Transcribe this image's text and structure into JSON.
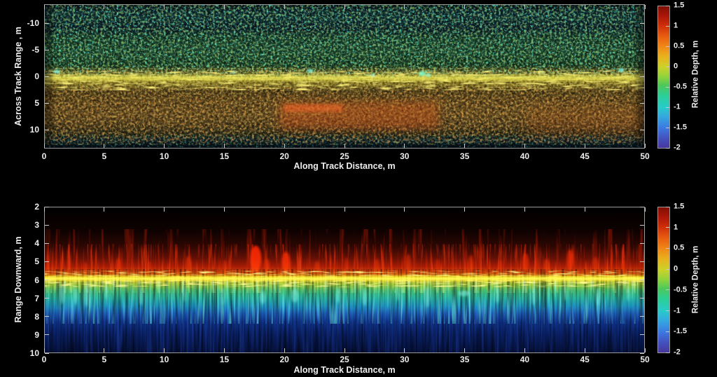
{
  "panels": [
    {
      "name": "plan-view",
      "xlabel": "Along Track Distance, m",
      "ylabel": "Across Track Range , m",
      "xticks": [
        "0",
        "5",
        "10",
        "15",
        "20",
        "25",
        "30",
        "35",
        "40",
        "45",
        "50"
      ],
      "yticks": [
        "-10",
        "-5",
        "0",
        "5",
        "10"
      ],
      "colorbar": {
        "label": "Relative Depth, m",
        "ticks": [
          "1.5",
          "1",
          "0.5",
          "0",
          "-0.5",
          "-1",
          "-1.5",
          "-2"
        ]
      }
    },
    {
      "name": "profile-view",
      "xlabel": "Along Track Distance, m",
      "ylabel": "Range Downward, m",
      "xticks": [
        "0",
        "5",
        "10",
        "15",
        "20",
        "25",
        "30",
        "35",
        "40",
        "45",
        "50"
      ],
      "yticks": [
        "2",
        "3",
        "4",
        "5",
        "6",
        "7",
        "8",
        "9",
        "10"
      ],
      "colorbar": {
        "label": "Relative Depth, m",
        "ticks": [
          "1.5",
          "1",
          "0.5",
          "0",
          "-0.5",
          "-1",
          "-1.5",
          "-2"
        ]
      }
    }
  ],
  "colors": {
    "background": "#000000",
    "text": "#ededed",
    "axis_border": "#9a9a9a",
    "tick_mark": "#c9c9c9",
    "colormap_top_to_bottom": [
      "#801004",
      "#cc2c08",
      "#e85c10",
      "#f08c18",
      "#e8b41e",
      "#ccd22a",
      "#8ed23c",
      "#4cc85a",
      "#2cce96",
      "#28ccc8",
      "#34a8e0",
      "#3c78e0",
      "#4452c0",
      "#46379b"
    ]
  },
  "chart_data": [
    {
      "type": "heatmap",
      "title": "",
      "view": "plan-view sonar relative-depth mosaic (speckled texture)",
      "xlabel": "Along Track Distance, m",
      "ylabel": "Across Track Range , m",
      "xlim": [
        0,
        50
      ],
      "ylim": [
        -13.5,
        13.5
      ],
      "xticks": [
        0,
        5,
        10,
        15,
        20,
        25,
        30,
        35,
        40,
        45,
        50
      ],
      "yticks": [
        -10,
        -5,
        0,
        5,
        10
      ],
      "grid": false,
      "legend_position": "colorbar-right",
      "colorbar": {
        "label": "Relative Depth, m",
        "min": -2,
        "max": 1.5,
        "ticks": [
          1.5,
          1,
          0.5,
          0,
          -0.5,
          -1,
          -1.5,
          -2
        ],
        "colormap": "jet-like rainbow, dark red (high) to indigo (low)"
      },
      "bands_across_track": [
        {
          "across_track_m": [
            -13.5,
            -11.5
          ],
          "relative_depth_m": -1.8,
          "appearance": "dark navy/teal edge"
        },
        {
          "across_track_m": [
            -11.5,
            -10
          ],
          "relative_depth_m": -1.9,
          "appearance": "darker navy stripe"
        },
        {
          "across_track_m": [
            -10,
            -1.5
          ],
          "relative_depth_m": -0.9,
          "appearance": "green/teal speckle with bright cyan dots"
        },
        {
          "across_track_m": [
            -1,
            1.5
          ],
          "relative_depth_m": 0.1,
          "appearance": "bright yellow band along track"
        },
        {
          "across_track_m": [
            2,
            10.5
          ],
          "relative_depth_m": 0.4,
          "appearance": "olive/orange/amber speckle"
        },
        {
          "across_track_m": [
            10.5,
            13.5
          ],
          "relative_depth_m": -1.8,
          "appearance": "dark navy edge with faint cyan speckle"
        }
      ],
      "features": [
        {
          "desc": "red high patch, relative depth ~ +1 to +1.5",
          "along_track_m": [
            16,
            29
          ],
          "across_track_m": [
            4,
            8
          ]
        },
        {
          "desc": "fainter red tint region",
          "along_track_m": [
            39,
            49
          ],
          "across_track_m": [
            5,
            9
          ]
        },
        {
          "desc": "bright cyan low spots near track center",
          "along_track_points_m": [
            1,
            18.5,
            22,
            27.5,
            31.5,
            48
          ],
          "across_track_m": 0
        }
      ]
    },
    {
      "type": "heatmap",
      "title": "",
      "view": "vertical-profile sonar echogram (vertical streak texture)",
      "xlabel": "Along Track Distance, m",
      "ylabel": "Range Downward, m",
      "xlim": [
        0,
        50
      ],
      "ylim": [
        2,
        10
      ],
      "y_direction": "downward",
      "xticks": [
        0,
        5,
        10,
        15,
        20,
        25,
        30,
        35,
        40,
        45,
        50
      ],
      "yticks": [
        2,
        3,
        4,
        5,
        6,
        7,
        8,
        9,
        10
      ],
      "grid": false,
      "legend_position": "colorbar-right",
      "colorbar": {
        "label": "Relative Depth, m",
        "min": -2,
        "max": 1.5,
        "ticks": [
          1.5,
          1,
          0.5,
          0,
          -0.5,
          -1,
          -1.5,
          -2
        ],
        "colormap": "jet-like rainbow, dark red (high) to indigo (low)"
      },
      "bands_range_downward": [
        {
          "range_downward_m": [
            2,
            3.8
          ],
          "appearance": "black, no return"
        },
        {
          "range_downward_m": [
            3.8,
            5.2
          ],
          "appearance": "very dark red fading in; thin red spikes rise to ~4.3 m"
        },
        {
          "range_downward_m": [
            5.2,
            5.9
          ],
          "appearance": "red to orange transition"
        },
        {
          "range_downward_m": [
            5.9,
            6.2
          ],
          "appearance": "bright yellow seabed ridge (slightly wavy)"
        },
        {
          "range_downward_m": [
            6.2,
            7.6
          ],
          "appearance": "yellow-green to teal/cyan vertical streaks"
        },
        {
          "range_downward_m": [
            7.6,
            10
          ],
          "appearance": "blue fading to dark navy with faint vertical striations"
        }
      ],
      "features": [
        {
          "desc": "brightest red spike cluster",
          "along_track_m": [
            17.5,
            21
          ],
          "range_downward_m": [
            4.5,
            5.7
          ]
        },
        {
          "desc": "secondary bright red spikes",
          "along_track_m": [
            40,
            44
          ],
          "range_downward_m": [
            4.8,
            5.7
          ]
        }
      ]
    }
  ]
}
